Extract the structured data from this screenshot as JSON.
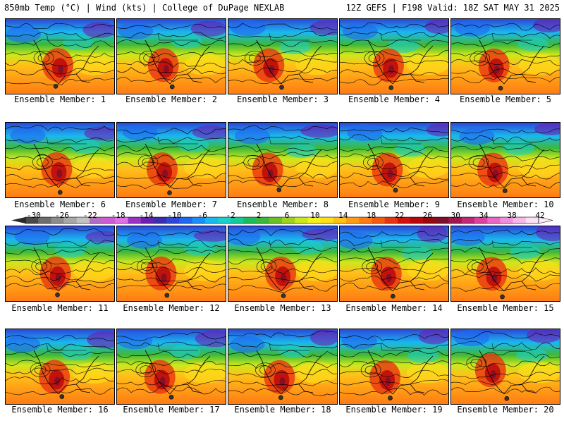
{
  "header": {
    "left": "850mb Temp (°C) | Wind (kts) | College of DuPage NEXLAB",
    "right": "12Z GEFS | F198 Valid: 18Z SAT MAY 31 2025"
  },
  "members": [
    "Ensemble Member: 1",
    "Ensemble Member: 2",
    "Ensemble Member: 3",
    "Ensemble Member: 4",
    "Ensemble Member: 5",
    "Ensemble Member: 6",
    "Ensemble Member: 7",
    "Ensemble Member: 8",
    "Ensemble Member: 9",
    "Ensemble Member: 10",
    "Ensemble Member: 11",
    "Ensemble Member: 12",
    "Ensemble Member: 13",
    "Ensemble Member: 14",
    "Ensemble Member: 15",
    "Ensemble Member: 16",
    "Ensemble Member: 17",
    "Ensemble Member: 18",
    "Ensemble Member: 19",
    "Ensemble Member: 20"
  ],
  "colorbar": {
    "ticks": [
      "-30",
      "-26",
      "-22",
      "-18",
      "-14",
      "-10",
      "-6",
      "-2",
      "2",
      "6",
      "10",
      "14",
      "18",
      "22",
      "26",
      "30",
      "34",
      "38",
      "42"
    ],
    "colors": [
      "#4a4a4a",
      "#6e6e6e",
      "#8c8c8c",
      "#a8a8a8",
      "#c2c2c2",
      "#b56cc4",
      "#d25ad6",
      "#e070e6",
      "#9a32c8",
      "#6a1fb0",
      "#3b2fb0",
      "#2b48d8",
      "#1f68f0",
      "#1890f8",
      "#1ab8f0",
      "#18d0d0",
      "#16c89a",
      "#1cbc5a",
      "#3cb83a",
      "#6cc028",
      "#9ed21e",
      "#cce81c",
      "#f2f21e",
      "#ffe01a",
      "#ffc018",
      "#ff9e16",
      "#ff7c14",
      "#f55a12",
      "#e83410",
      "#d4100e",
      "#b8080c",
      "#980810",
      "#801028",
      "#a01850",
      "#c02878",
      "#d844a0",
      "#e868c4",
      "#f090dc",
      "#f8b8ec",
      "#fce0f6"
    ]
  },
  "colors": {
    "border": "#000000",
    "background": "#ffffff"
  }
}
